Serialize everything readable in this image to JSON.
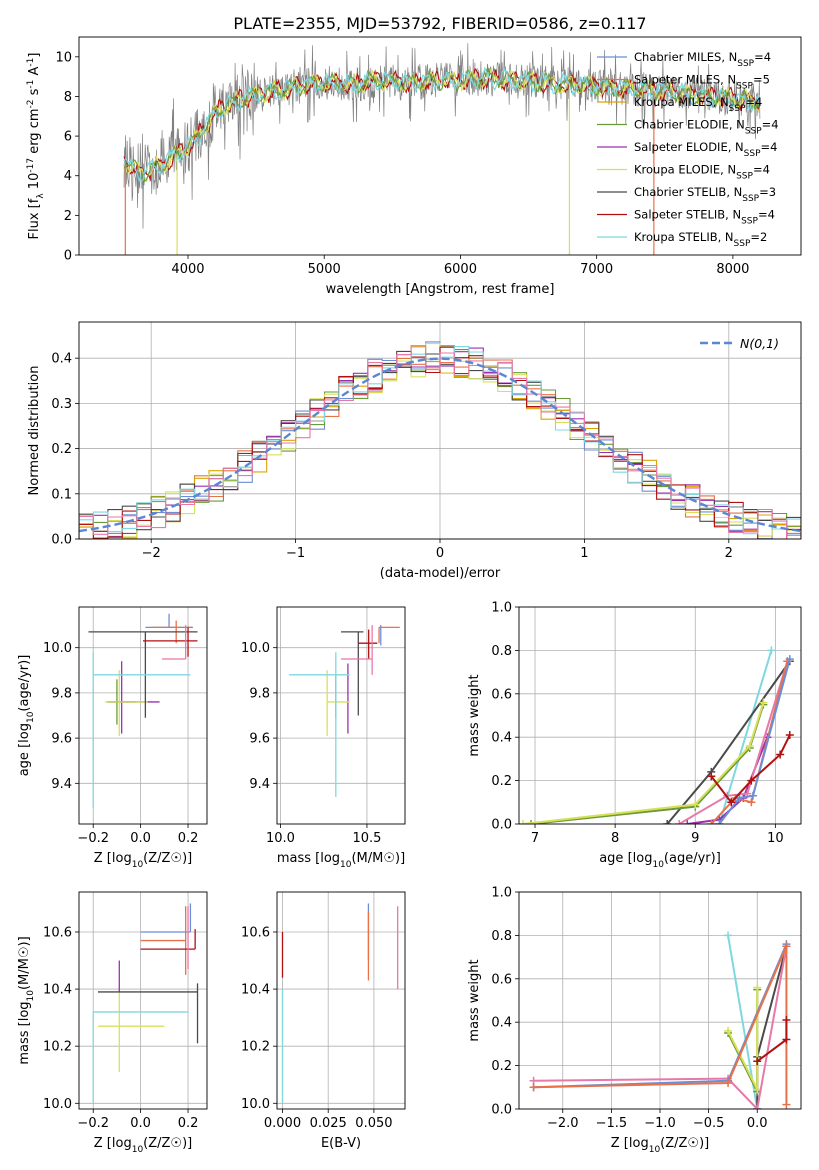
{
  "figure": {
    "title": "PLATE=2355, MJD=53792, FIBERID=0586, z=0.117"
  },
  "colors": {
    "chabrier_miles": "#6b8fd6",
    "salpeter_miles": "#e8714a",
    "kroupa_miles": "#d9a400",
    "chabrier_elodie": "#6a9a3a",
    "salpeter_elodie": "#9b30b0",
    "kroupa_elodie": "#d8e05a",
    "chabrier_stelib": "#4a4a4a",
    "salpeter_stelib": "#b01010",
    "kroupa_stelib": "#7fd8e0",
    "extra_pink": "#e878a8",
    "data_gray": "#808080",
    "normal_curve": "#5b86d4"
  },
  "chart_data": [
    {
      "id": "spectrum",
      "type": "line",
      "xlabel": "wavelength [Angstrom, rest frame]",
      "ylabel": "Flux [f_λ 10^-17 erg cm^-2 s^-1 A^-1]",
      "xlim": [
        3200,
        8500
      ],
      "ylim": [
        0,
        11
      ],
      "xticks": [
        4000,
        5000,
        6000,
        7000,
        8000
      ],
      "yticks": [
        0,
        2,
        4,
        6,
        8,
        10
      ],
      "legend_position": "right",
      "legend": [
        {
          "label": "Chabrier MILES, N_SSP=4",
          "color_key": "chabrier_miles"
        },
        {
          "label": "Salpeter MILES, N_SSP=5",
          "color_key": "salpeter_miles"
        },
        {
          "label": "Kroupa MILES, N_SSP=4",
          "color_key": "kroupa_miles"
        },
        {
          "label": "Chabrier ELODIE, N_SSP=4",
          "color_key": "chabrier_elodie"
        },
        {
          "label": "Salpeter ELODIE, N_SSP=4",
          "color_key": "salpeter_elodie"
        },
        {
          "label": "Kroupa ELODIE, N_SSP=4",
          "color_key": "kroupa_elodie"
        },
        {
          "label": "Chabrier STELIB, N_SSP=3",
          "color_key": "chabrier_stelib"
        },
        {
          "label": "Salpeter STELIB, N_SSP=4",
          "color_key": "salpeter_stelib"
        },
        {
          "label": "Kroupa STELIB, N_SSP=2",
          "color_key": "kroupa_stelib"
        }
      ],
      "continuum": {
        "x": [
          3530,
          3600,
          3700,
          3800,
          3900,
          4000,
          4100,
          4200,
          4300,
          4400,
          4500,
          4600,
          4800,
          5000,
          5200,
          5400,
          5600,
          5800,
          6000,
          6200,
          6400,
          6600,
          6800,
          7000,
          7200,
          7400,
          7600,
          7800,
          8000,
          8200
        ],
        "y": [
          4.8,
          4.3,
          4.2,
          4.5,
          5.0,
          5.5,
          6.2,
          7.2,
          7.6,
          7.9,
          8.1,
          8.2,
          8.5,
          8.7,
          8.6,
          8.8,
          8.7,
          8.8,
          8.8,
          8.9,
          8.8,
          8.7,
          8.6,
          8.5,
          8.4,
          8.3,
          8.2,
          8.0,
          7.9,
          7.7
        ]
      },
      "model_dips": [
        {
          "x": 3540,
          "color_key": "salpeter_miles"
        },
        {
          "x": 3920,
          "color_key": "kroupa_elodie"
        },
        {
          "x": 6800,
          "color_key": "kroupa_elodie"
        },
        {
          "x": 7420,
          "color_key": "salpeter_miles"
        }
      ]
    },
    {
      "id": "residual_histogram",
      "type": "histogram",
      "xlabel": "(data-model)/error",
      "ylabel": "Normed distribution",
      "xlim": [
        -2.5,
        2.5
      ],
      "ylim": [
        0,
        0.48
      ],
      "xticks": [
        -2,
        -1,
        0,
        1,
        2
      ],
      "yticks": [
        0.0,
        0.1,
        0.2,
        0.3,
        0.4
      ],
      "grid": true,
      "legend_position": "top-right",
      "normal_label": "N(0,1)",
      "bin_width": 0.1
    },
    {
      "id": "age_vs_Z",
      "type": "errorbar",
      "xlabel": "Z [log10(Z/Z☉)]",
      "ylabel": "age  [log10(age/yr)]",
      "xlim": [
        -0.26,
        0.28
      ],
      "ylim": [
        9.22,
        10.18
      ],
      "xticks": [
        -0.2,
        0.0,
        0.2
      ],
      "yticks": [
        9.4,
        9.6,
        9.8,
        10.0
      ],
      "grid": true,
      "points": [
        {
          "color_key": "chabrier_miles",
          "x": 0.12,
          "xerr": [
            0.1,
            0.1
          ],
          "y": 10.09,
          "yerr": [
            0.0,
            0.06
          ]
        },
        {
          "color_key": "salpeter_miles",
          "x": 0.15,
          "xerr": [
            0.1,
            0.07
          ],
          "y": 10.09,
          "yerr": [
            0.07,
            0.03
          ]
        },
        {
          "color_key": "chabrier_elodie",
          "x": -0.1,
          "xerr": [
            0.04,
            0.08
          ],
          "y": 9.76,
          "yerr": [
            0.1,
            0.1
          ]
        },
        {
          "color_key": "salpeter_elodie",
          "x": -0.08,
          "xerr": [
            0.06,
            0.16
          ],
          "y": 9.76,
          "yerr": [
            0.14,
            0.18
          ]
        },
        {
          "color_key": "kroupa_elodie",
          "x": -0.09,
          "xerr": [
            0.06,
            0.12
          ],
          "y": 9.76,
          "yerr": [
            0.15,
            0.14
          ]
        },
        {
          "color_key": "chabrier_stelib",
          "x": 0.02,
          "xerr": [
            0.24,
            0.22
          ],
          "y": 10.07,
          "yerr": [
            0.38,
            0.0
          ]
        },
        {
          "color_key": "salpeter_stelib",
          "x": 0.2,
          "xerr": [
            0.19,
            0.04
          ],
          "y": 10.03,
          "yerr": [
            0.07,
            0.06
          ]
        },
        {
          "color_key": "kroupa_stelib",
          "x": -0.2,
          "xerr": [
            0.0,
            0.41
          ],
          "y": 9.88,
          "yerr": [
            0.59,
            0.1
          ]
        },
        {
          "color_key": "extra_pink",
          "x": 0.19,
          "xerr": [
            0.1,
            0.0
          ],
          "y": 9.95,
          "yerr": [
            0.0,
            0.15
          ]
        }
      ]
    },
    {
      "id": "age_vs_mass",
      "type": "errorbar",
      "xlabel": "mass [log10(M/M☉)]",
      "ylabel": "",
      "xlim": [
        9.98,
        10.72
      ],
      "ylim": [
        9.22,
        10.18
      ],
      "xticks": [
        10.0,
        10.5
      ],
      "yticks": [
        9.4,
        9.6,
        9.8,
        10.0
      ],
      "grid": true,
      "points": [
        {
          "color_key": "chabrier_miles",
          "x": 10.58,
          "xerr": [
            0.0,
            0.0
          ],
          "y": 10.05,
          "yerr": [
            0.04,
            0.05
          ]
        },
        {
          "color_key": "salpeter_miles",
          "x": 10.57,
          "xerr": [
            0.0,
            0.12
          ],
          "y": 10.09,
          "yerr": [
            0.07,
            0.0
          ]
        },
        {
          "color_key": "chabrier_elodie",
          "x": 10.32,
          "xerr": [
            0.0,
            0.0
          ],
          "y": 9.76,
          "yerr": [
            0.07,
            0.12
          ]
        },
        {
          "color_key": "salpeter_elodie",
          "x": 10.39,
          "xerr": [
            0.0,
            0.0
          ],
          "y": 9.76,
          "yerr": [
            0.14,
            0.17
          ]
        },
        {
          "color_key": "kroupa_elodie",
          "x": 10.27,
          "xerr": [
            0.0,
            0.13
          ],
          "y": 9.76,
          "yerr": [
            0.15,
            0.14
          ]
        },
        {
          "color_key": "chabrier_stelib",
          "x": 10.45,
          "xerr": [
            0.1,
            0.03
          ],
          "y": 10.07,
          "yerr": [
            0.37,
            0.0
          ]
        },
        {
          "color_key": "salpeter_stelib",
          "x": 10.51,
          "xerr": [
            0.06,
            0.05
          ],
          "y": 10.02,
          "yerr": [
            0.07,
            0.06
          ]
        },
        {
          "color_key": "kroupa_stelib",
          "x": 10.32,
          "xerr": [
            0.27,
            0.08
          ],
          "y": 9.88,
          "yerr": [
            0.54,
            0.1
          ]
        },
        {
          "color_key": "extra_pink",
          "x": 10.53,
          "xerr": [
            0.18,
            0.0
          ],
          "y": 9.95,
          "yerr": [
            0.07,
            0.15
          ]
        }
      ]
    },
    {
      "id": "weight_vs_age",
      "type": "line",
      "xlabel": "age  [log10(age/yr)]",
      "ylabel": "mass weight",
      "xlim": [
        6.8,
        10.32
      ],
      "ylim": [
        0,
        1.0
      ],
      "xticks": [
        7,
        8,
        9,
        10
      ],
      "yticks": [
        0.0,
        0.2,
        0.4,
        0.6,
        0.8,
        1.0
      ],
      "grid": true,
      "series": [
        {
          "color_key": "kroupa_stelib",
          "x": [
            9.3,
            9.95
          ],
          "y": [
            0.0,
            0.8
          ]
        },
        {
          "color_key": "chabrier_stelib",
          "x": [
            8.65,
            9.2,
            10.18
          ],
          "y": [
            0.0,
            0.24,
            0.75
          ]
        },
        {
          "color_key": "chabrier_elodie",
          "x": [
            6.95,
            9.0,
            9.68,
            9.85
          ],
          "y": [
            0.0,
            0.08,
            0.35,
            0.55
          ]
        },
        {
          "color_key": "kroupa_elodie",
          "x": [
            6.85,
            9.0,
            9.68,
            9.85
          ],
          "y": [
            0.0,
            0.09,
            0.36,
            0.56
          ]
        },
        {
          "color_key": "salpeter_elodie",
          "x": [
            8.9,
            9.3,
            9.6,
            9.9
          ],
          "y": [
            0.0,
            0.02,
            0.12,
            0.4
          ]
        },
        {
          "color_key": "extra_pink",
          "x": [
            8.8,
            9.4,
            9.65,
            10.15
          ],
          "y": [
            0.0,
            0.13,
            0.14,
            0.75
          ]
        },
        {
          "color_key": "salpeter_miles",
          "x": [
            9.2,
            9.5,
            9.7,
            10.15
          ],
          "y": [
            0.0,
            0.12,
            0.1,
            0.75
          ]
        },
        {
          "color_key": "chabrier_miles",
          "x": [
            9.3,
            9.55,
            9.72,
            10.18
          ],
          "y": [
            0.0,
            0.12,
            0.13,
            0.76
          ]
        },
        {
          "color_key": "salpeter_stelib",
          "x": [
            9.2,
            9.45,
            9.7,
            10.06,
            10.18
          ],
          "y": [
            0.22,
            0.1,
            0.2,
            0.32,
            0.41
          ]
        }
      ]
    },
    {
      "id": "mass_vs_Z",
      "type": "errorbar",
      "xlabel": "Z [log10(Z/Z☉)]",
      "ylabel": "mass [log10(M/M☉)]",
      "xlim": [
        -0.26,
        0.28
      ],
      "ylim": [
        9.98,
        10.74
      ],
      "xticks": [
        -0.2,
        0.0,
        0.2
      ],
      "yticks": [
        10.0,
        10.2,
        10.4,
        10.6
      ],
      "grid": true,
      "points": [
        {
          "color_key": "chabrier_miles",
          "x": 0.21,
          "xerr": [
            0.21,
            0.0
          ],
          "y": 10.6,
          "yerr": [
            0.0,
            0.1
          ]
        },
        {
          "color_key": "salpeter_miles",
          "x": 0.19,
          "xerr": [
            0.19,
            0.0
          ],
          "y": 10.57,
          "yerr": [
            0.12,
            0.12
          ]
        },
        {
          "color_key": "kroupa_elodie",
          "x": -0.09,
          "xerr": [
            0.09,
            0.19
          ],
          "y": 10.27,
          "yerr": [
            0.16,
            0.12
          ]
        },
        {
          "color_key": "salpeter_elodie",
          "x": -0.09,
          "xerr": [
            0.0,
            0.0
          ],
          "y": 10.39,
          "yerr": [
            0.0,
            0.11
          ]
        },
        {
          "color_key": "chabrier_stelib",
          "x": 0.24,
          "xerr": [
            0.42,
            0.0
          ],
          "y": 10.39,
          "yerr": [
            0.18,
            0.03
          ]
        },
        {
          "color_key": "salpeter_stelib",
          "x": 0.23,
          "xerr": [
            0.23,
            0.0
          ],
          "y": 10.54,
          "yerr": [
            0.0,
            0.07
          ]
        },
        {
          "color_key": "kroupa_stelib",
          "x": -0.2,
          "xerr": [
            0.0,
            0.4
          ],
          "y": 10.32,
          "yerr": [
            0.32,
            0.0
          ]
        },
        {
          "color_key": "extra_pink",
          "x": 0.2,
          "xerr": [
            0.0,
            0.0
          ],
          "y": 10.57,
          "yerr": [
            0.1,
            0.12
          ]
        }
      ]
    },
    {
      "id": "mass_vs_ebv",
      "type": "errorbar",
      "xlabel": "E(B-V)",
      "ylabel": "",
      "xlim": [
        -0.003,
        0.067
      ],
      "ylim": [
        9.98,
        10.74
      ],
      "xticks": [
        0.0,
        0.025,
        0.05
      ],
      "xtick_labels": [
        "0.000",
        "0.025",
        "0.050"
      ],
      "yticks": [
        10.0,
        10.2,
        10.4,
        10.6
      ],
      "grid": true,
      "points": [
        {
          "color_key": "salpeter_stelib",
          "x": 0.0,
          "xerr": [
            0,
            0
          ],
          "y": 10.5,
          "yerr": [
            0.06,
            0.1
          ]
        },
        {
          "color_key": "kroupa_stelib",
          "x": 0.0,
          "xerr": [
            0,
            0
          ],
          "y": 10.3,
          "yerr": [
            0.3,
            0.1
          ]
        },
        {
          "color_key": "chabrier_miles",
          "x": 0.047,
          "xerr": [
            0,
            0
          ],
          "y": 10.6,
          "yerr": [
            0.1,
            0.1
          ]
        },
        {
          "color_key": "salpeter_miles",
          "x": 0.047,
          "xerr": [
            0,
            0
          ],
          "y": 10.55,
          "yerr": [
            0.12,
            0.12
          ]
        },
        {
          "color_key": "extra_pink",
          "x": 0.063,
          "xerr": [
            0,
            0
          ],
          "y": 10.55,
          "yerr": [
            0.15,
            0.14
          ]
        }
      ]
    },
    {
      "id": "weight_vs_Z",
      "type": "line",
      "xlabel": "Z [log10(Z/Z☉)]",
      "ylabel": "mass weight",
      "xlim": [
        -2.45,
        0.45
      ],
      "ylim": [
        0,
        1.0
      ],
      "xticks": [
        -2.0,
        -1.5,
        -1.0,
        -0.5,
        0.0
      ],
      "yticks": [
        0.0,
        0.2,
        0.4,
        0.6,
        0.8,
        1.0
      ],
      "grid": true,
      "series": [
        {
          "color_key": "kroupa_stelib",
          "x": [
            -0.3,
            0.0
          ],
          "y": [
            0.8,
            0.0
          ]
        },
        {
          "color_key": "chabrier_stelib",
          "x": [
            0.0,
            0.0,
            0.3
          ],
          "y": [
            0.0,
            0.24,
            0.75
          ]
        },
        {
          "color_key": "chabrier_elodie",
          "x": [
            -0.3,
            0.0,
            0.0
          ],
          "y": [
            0.35,
            0.08,
            0.55
          ]
        },
        {
          "color_key": "kroupa_elodie",
          "x": [
            -0.3,
            0.0,
            0.0
          ],
          "y": [
            0.36,
            0.09,
            0.56
          ]
        },
        {
          "color_key": "extra_pink",
          "x": [
            -2.3,
            -0.3,
            0.0,
            0.3
          ],
          "y": [
            0.13,
            0.14,
            0.0,
            0.75
          ]
        },
        {
          "color_key": "chabrier_miles",
          "x": [
            -2.3,
            -0.3,
            0.3
          ],
          "y": [
            0.1,
            0.13,
            0.76
          ]
        },
        {
          "color_key": "salpeter_miles",
          "x": [
            -2.3,
            -0.3,
            0.3,
            0.3
          ],
          "y": [
            0.1,
            0.12,
            0.75,
            0.02
          ]
        },
        {
          "color_key": "salpeter_stelib",
          "x": [
            0.0,
            0.3,
            0.3
          ],
          "y": [
            0.22,
            0.32,
            0.41
          ]
        }
      ]
    }
  ]
}
